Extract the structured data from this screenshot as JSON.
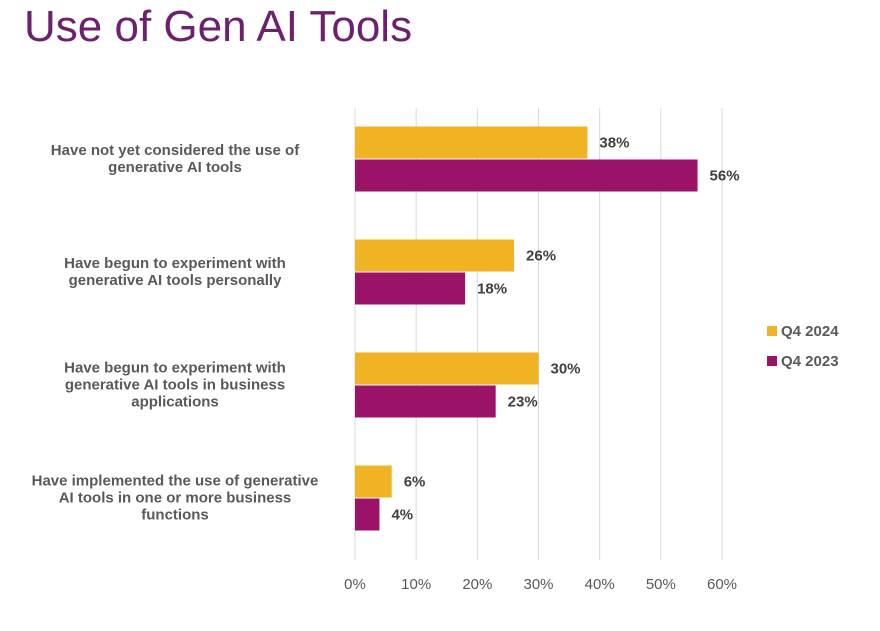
{
  "title": "Use of Gen AI Tools",
  "chart_data": {
    "type": "bar",
    "orientation": "horizontal",
    "categories": [
      [
        "Have not yet considered the use of",
        "generative AI tools"
      ],
      [
        "Have begun to experiment with",
        "generative AI tools personally"
      ],
      [
        "Have begun to experiment with",
        "generative AI tools in business",
        "applications"
      ],
      [
        "Have implemented the use of generative",
        "AI tools in one or more business",
        "functions"
      ]
    ],
    "series": [
      {
        "name": "Q4 2024",
        "color": "#F0B323",
        "values": [
          38,
          26,
          30,
          6
        ]
      },
      {
        "name": "Q4 2023",
        "color": "#9B1368",
        "values": [
          56,
          18,
          23,
          4
        ]
      }
    ],
    "xlim": [
      0,
      60
    ],
    "xticks": [
      "0%",
      "10%",
      "20%",
      "30%",
      "40%",
      "50%",
      "60%"
    ],
    "xtick_values": [
      0,
      10,
      20,
      30,
      40,
      50,
      60
    ],
    "value_suffix": "%",
    "grid": "vertical",
    "legend": "right"
  }
}
